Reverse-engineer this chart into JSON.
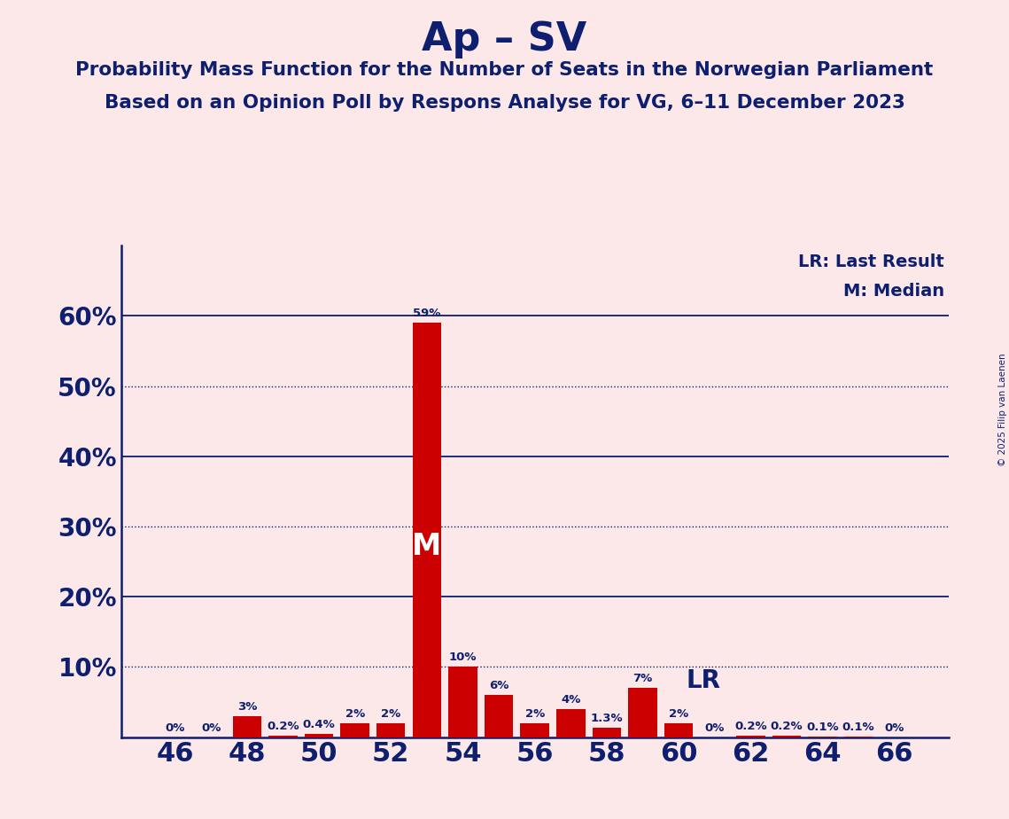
{
  "title": "Ap – SV",
  "subtitle1": "Probability Mass Function for the Number of Seats in the Norwegian Parliament",
  "subtitle2": "Based on an Opinion Poll by Respons Analyse for VG, 6–11 December 2023",
  "copyright": "© 2025 Filip van Laenen",
  "seats": [
    46,
    47,
    48,
    49,
    50,
    51,
    52,
    53,
    54,
    55,
    56,
    57,
    58,
    59,
    60,
    61,
    62,
    63,
    64,
    65,
    66
  ],
  "probabilities": [
    0.0,
    0.0,
    3.0,
    0.2,
    0.4,
    2.0,
    2.0,
    59.0,
    10.0,
    6.0,
    2.0,
    4.0,
    1.3,
    7.0,
    2.0,
    0.0,
    0.2,
    0.2,
    0.1,
    0.1,
    0.0
  ],
  "bar_color": "#cc0000",
  "median_seat": 53,
  "lr_seat": 59,
  "background_color": "#fce8e8",
  "text_color": "#0d1f6e",
  "ylim": [
    0,
    70
  ],
  "xlabel_ticks": [
    46,
    48,
    50,
    52,
    54,
    56,
    58,
    60,
    62,
    64,
    66
  ],
  "legend_lr": "LR: Last Result",
  "legend_m": "M: Median",
  "lr_label": "LR",
  "m_label": "M",
  "solid_gridlines": [
    20,
    40,
    60
  ],
  "dotted_gridlines": [
    10,
    30,
    50
  ],
  "ytick_labels": [
    "",
    "10%",
    "20%",
    "30%",
    "40%",
    "50%",
    "60%"
  ]
}
